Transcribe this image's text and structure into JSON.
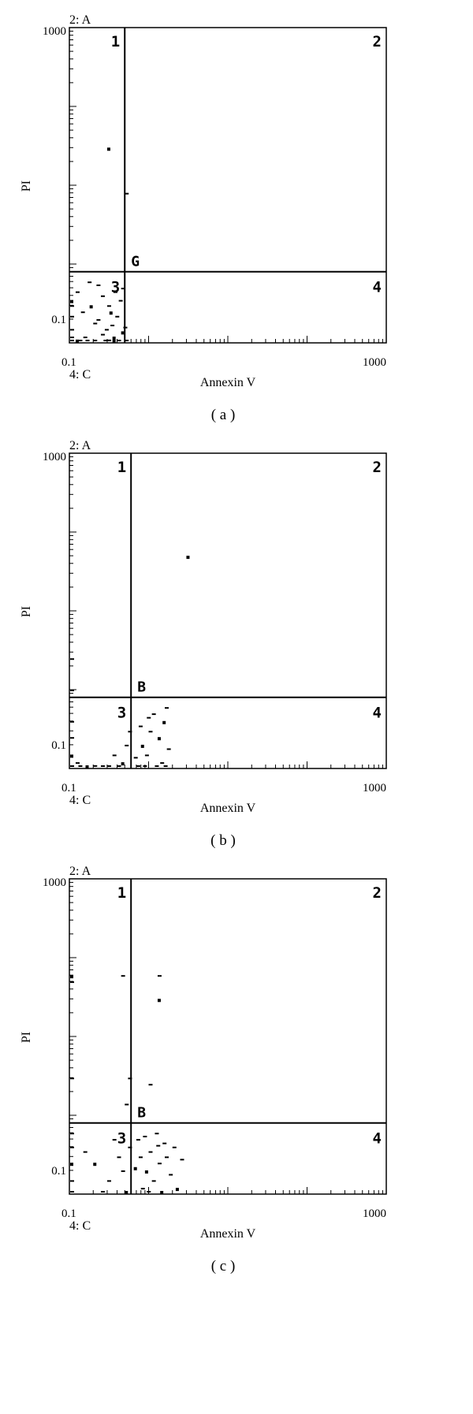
{
  "chart_data": [
    {
      "type": "scatter",
      "panel_caption": "( a )",
      "xlabel": "Annexin V",
      "ylabel": "PI",
      "corner_top_left": "2: A",
      "corner_bottom_left": "4: C",
      "x_scale": "log",
      "y_scale": "log",
      "xlim": [
        0.1,
        1000
      ],
      "ylim": [
        0.1,
        1000
      ],
      "x_tick_labels": [
        "0.1",
        "1000"
      ],
      "y_tick_labels": [
        "1000",
        "0.1"
      ],
      "gate_label": "G",
      "gate_x": 0.5,
      "gate_y": 0.8,
      "quadrant_labels": [
        "1",
        "2",
        "3",
        "4"
      ],
      "points": [
        [
          0.3,
          30
        ],
        [
          0.5,
          8
        ],
        [
          0.1,
          0.15
        ],
        [
          0.1,
          0.12
        ],
        [
          0.1,
          0.1
        ],
        [
          0.12,
          0.11
        ],
        [
          0.15,
          0.12
        ],
        [
          0.2,
          0.1
        ],
        [
          0.25,
          0.13
        ],
        [
          0.3,
          0.11
        ],
        [
          0.35,
          0.12
        ],
        [
          0.4,
          0.1
        ],
        [
          0.28,
          0.15
        ],
        [
          0.33,
          0.17
        ],
        [
          0.22,
          0.2
        ],
        [
          0.45,
          0.14
        ],
        [
          0.38,
          0.22
        ],
        [
          0.3,
          0.3
        ],
        [
          0.42,
          0.35
        ],
        [
          0.25,
          0.4
        ],
        [
          0.18,
          0.3
        ],
        [
          0.12,
          0.45
        ],
        [
          0.14,
          0.25
        ],
        [
          0.2,
          0.18
        ],
        [
          0.4,
          0.09
        ],
        [
          0.35,
          0.08
        ],
        [
          0.5,
          0.09
        ],
        [
          0.48,
          0.16
        ],
        [
          0.1,
          0.3
        ],
        [
          0.1,
          0.22
        ],
        [
          0.1,
          0.35
        ],
        [
          0.1,
          0.08
        ],
        [
          0.13,
          0.09
        ],
        [
          0.16,
          0.08
        ],
        [
          0.27,
          0.09
        ],
        [
          0.32,
          0.25
        ],
        [
          0.45,
          0.5
        ],
        [
          0.22,
          0.55
        ],
        [
          0.36,
          0.45
        ],
        [
          0.17,
          0.6
        ]
      ]
    },
    {
      "type": "scatter",
      "panel_caption": "( b )",
      "xlabel": "Annexin V",
      "ylabel": "PI",
      "corner_top_left": "2: A",
      "corner_bottom_left": "4: C",
      "x_scale": "log",
      "y_scale": "log",
      "xlim": [
        0.1,
        1000
      ],
      "ylim": [
        0.1,
        1000
      ],
      "x_tick_labels": [
        "0.1",
        "1000"
      ],
      "y_tick_labels": [
        "1000",
        "0.1"
      ],
      "gate_label": "B",
      "gate_x": 0.6,
      "gate_y": 0.8,
      "quadrant_labels": [
        "1",
        "2",
        "3",
        "4"
      ],
      "points": [
        [
          3,
          50
        ],
        [
          0.1,
          2.5
        ],
        [
          0.1,
          1
        ],
        [
          0.1,
          0.4
        ],
        [
          0.1,
          0.25
        ],
        [
          0.1,
          0.15
        ],
        [
          0.1,
          0.1
        ],
        [
          0.1,
          0.08
        ],
        [
          0.12,
          0.12
        ],
        [
          0.13,
          0.09
        ],
        [
          0.16,
          0.1
        ],
        [
          0.2,
          0.11
        ],
        [
          0.25,
          0.1
        ],
        [
          0.3,
          0.09
        ],
        [
          0.4,
          0.1
        ],
        [
          0.45,
          0.12
        ],
        [
          0.5,
          0.2
        ],
        [
          0.55,
          0.3
        ],
        [
          0.35,
          0.15
        ],
        [
          0.7,
          0.1
        ],
        [
          0.8,
          0.2
        ],
        [
          0.9,
          0.15
        ],
        [
          1,
          0.3
        ],
        [
          1.2,
          0.08
        ],
        [
          1.4,
          0.12
        ],
        [
          1.5,
          0.4
        ],
        [
          1.6,
          0.6
        ],
        [
          1.1,
          0.5
        ],
        [
          0.75,
          0.35
        ],
        [
          0.85,
          0.09
        ],
        [
          1.3,
          0.25
        ],
        [
          1.55,
          0.1
        ],
        [
          0.65,
          0.14
        ],
        [
          0.95,
          0.45
        ],
        [
          1.7,
          0.18
        ]
      ]
    },
    {
      "type": "scatter",
      "panel_caption": "( c )",
      "xlabel": "Annexin V",
      "ylabel": "PI",
      "corner_top_left": "2: A",
      "corner_bottom_left": "4: C",
      "x_scale": "log",
      "y_scale": "log",
      "xlim": [
        0.1,
        1000
      ],
      "ylim": [
        0.1,
        1000
      ],
      "x_tick_labels": [
        "0.1",
        "1000"
      ],
      "y_tick_labels": [
        "1000",
        "0.1"
      ],
      "gate_label": "B",
      "gate_x": 0.6,
      "gate_y": 0.8,
      "quadrant_labels": [
        "1",
        "2",
        "3",
        "4"
      ],
      "points": [
        [
          0.1,
          60
        ],
        [
          0.1,
          50
        ],
        [
          0.1,
          3
        ],
        [
          0.1,
          0.6
        ],
        [
          0.1,
          0.4
        ],
        [
          0.1,
          0.25
        ],
        [
          0.1,
          0.15
        ],
        [
          0.1,
          0.1
        ],
        [
          0.45,
          60
        ],
        [
          1.3,
          60
        ],
        [
          1.3,
          30
        ],
        [
          0.55,
          3
        ],
        [
          1,
          2.5
        ],
        [
          0.5,
          1.4
        ],
        [
          0.15,
          0.35
        ],
        [
          0.2,
          0.25
        ],
        [
          0.3,
          0.15
        ],
        [
          0.35,
          0.5
        ],
        [
          0.4,
          0.3
        ],
        [
          0.45,
          0.2
        ],
        [
          0.5,
          0.1
        ],
        [
          0.55,
          0.4
        ],
        [
          0.7,
          0.5
        ],
        [
          0.75,
          0.3
        ],
        [
          0.8,
          0.12
        ],
        [
          0.9,
          0.2
        ],
        [
          1,
          0.35
        ],
        [
          1.1,
          0.15
        ],
        [
          1.2,
          0.6
        ],
        [
          1.3,
          0.25
        ],
        [
          1.4,
          0.1
        ],
        [
          1.5,
          0.45
        ],
        [
          1.6,
          0.3
        ],
        [
          1.8,
          0.18
        ],
        [
          2,
          0.4
        ],
        [
          2.2,
          0.12
        ],
        [
          2.5,
          0.28
        ],
        [
          0.85,
          0.55
        ],
        [
          0.95,
          0.1
        ],
        [
          1.25,
          0.42
        ],
        [
          0.65,
          0.22
        ],
        [
          0.25,
          0.09
        ]
      ]
    }
  ]
}
